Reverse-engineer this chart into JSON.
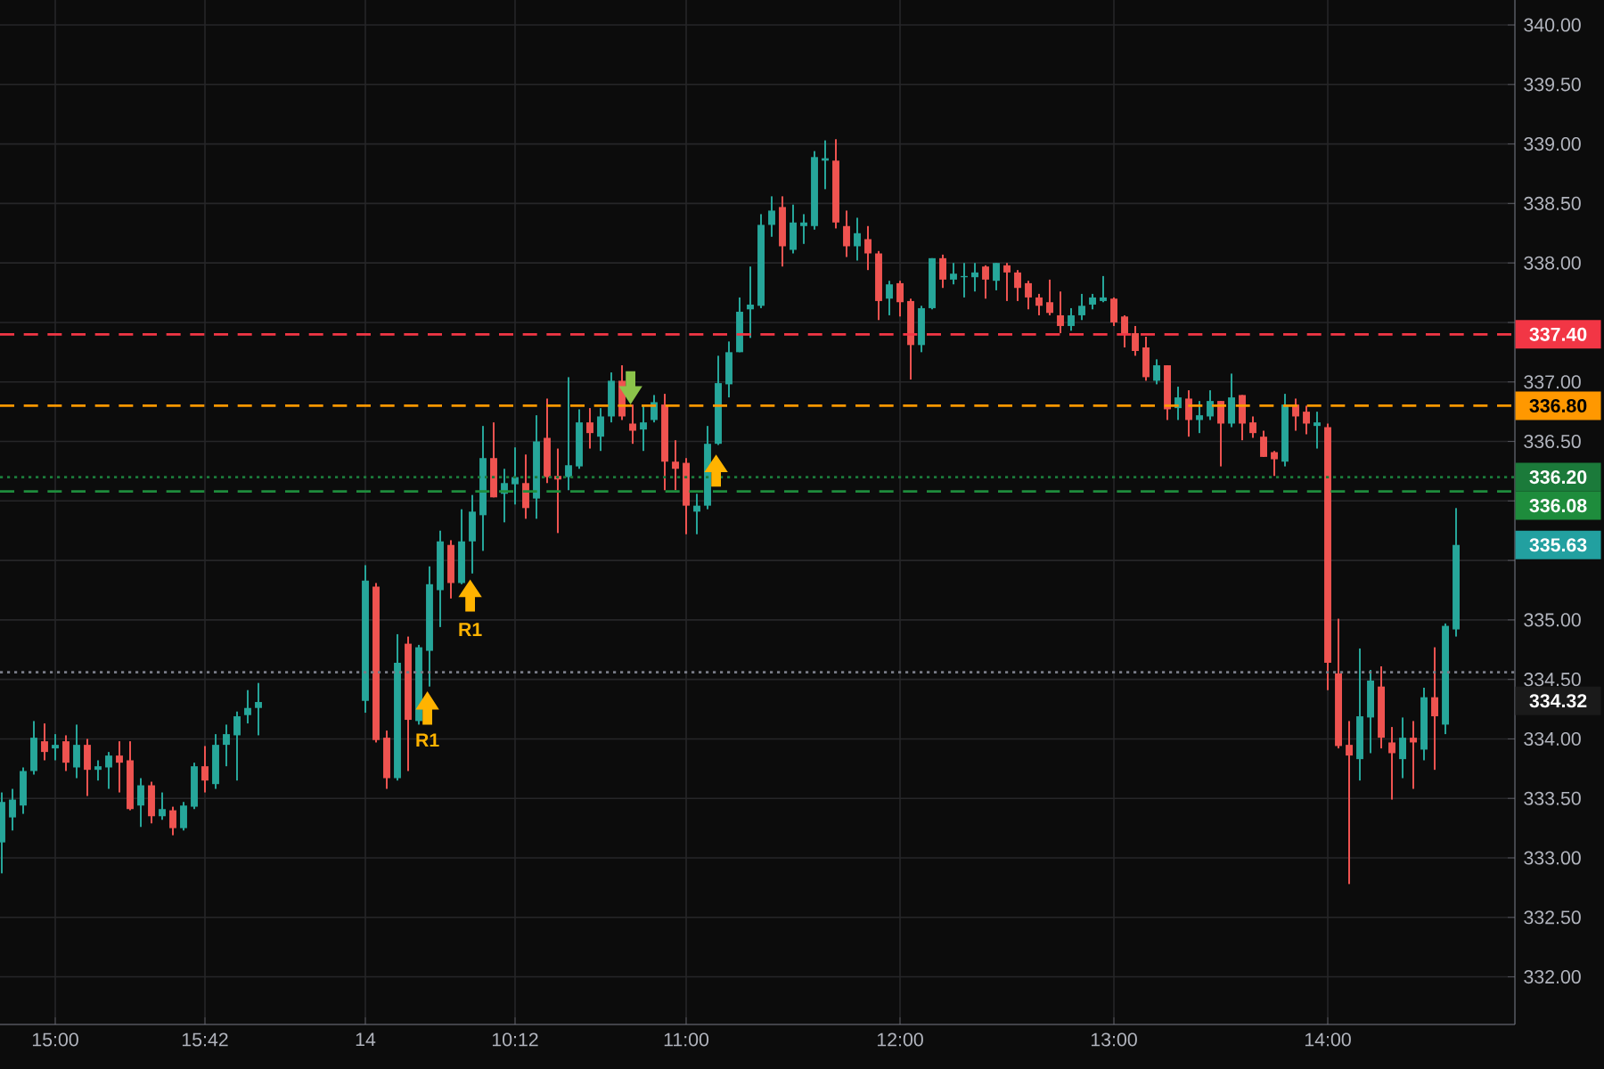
{
  "chart_data": {
    "type": "candlestick",
    "categories": [
      null,
      null,
      null,
      null,
      null,
      "15:00",
      null,
      null,
      null,
      null,
      null,
      null,
      null,
      null,
      null,
      null,
      null,
      null,
      null,
      "15:42",
      null,
      null,
      null,
      null,
      null,
      null,
      null,
      null,
      null,
      null,
      null,
      null,
      null,
      null,
      "14",
      null,
      null,
      null,
      null,
      null,
      null,
      null,
      null,
      null,
      null,
      null,
      null,
      null,
      "10:12",
      null,
      null,
      null,
      null,
      null,
      null,
      null,
      null,
      null,
      null,
      null,
      null,
      null,
      null,
      null,
      "11:00",
      null,
      null,
      null,
      null,
      null,
      null,
      null,
      null,
      null,
      null,
      null,
      null,
      null,
      null,
      null,
      null,
      null,
      null,
      null,
      "12:00",
      null,
      null,
      null,
      null,
      null,
      null,
      null,
      null,
      null,
      null,
      null,
      null,
      null,
      null,
      null,
      null,
      null,
      null,
      null,
      "13:00",
      null,
      null,
      null,
      null,
      null,
      null,
      null,
      null,
      null,
      null,
      null,
      null,
      null,
      null,
      null,
      null,
      null,
      null,
      null,
      "14:00",
      null,
      null,
      null,
      null,
      null,
      null,
      null,
      null,
      null,
      null,
      null,
      null
    ],
    "ohlc": [
      [
        333.13,
        333.55,
        332.87,
        333.47
      ],
      [
        333.34,
        333.58,
        333.23,
        333.49
      ],
      [
        333.44,
        333.76,
        333.37,
        333.73
      ],
      [
        333.73,
        334.15,
        333.7,
        334.01
      ],
      [
        333.98,
        334.13,
        333.82,
        333.89
      ],
      [
        333.92,
        334.04,
        333.82,
        333.95
      ],
      [
        333.98,
        334.03,
        333.73,
        333.8
      ],
      [
        333.76,
        334.12,
        333.67,
        333.95
      ],
      [
        333.95,
        334.0,
        333.52,
        333.74
      ],
      [
        333.74,
        333.82,
        333.65,
        333.77
      ],
      [
        333.76,
        333.89,
        333.58,
        333.86
      ],
      [
        333.86,
        333.98,
        333.55,
        333.8
      ],
      [
        333.82,
        333.98,
        333.4,
        333.41
      ],
      [
        333.44,
        333.67,
        333.26,
        333.61
      ],
      [
        333.61,
        333.64,
        333.29,
        333.35
      ],
      [
        333.35,
        333.55,
        333.32,
        333.41
      ],
      [
        333.4,
        333.43,
        333.19,
        333.25
      ],
      [
        333.25,
        333.47,
        333.23,
        333.44
      ],
      [
        333.43,
        333.8,
        333.41,
        333.77
      ],
      [
        333.77,
        333.94,
        333.55,
        333.65
      ],
      [
        333.62,
        334.04,
        333.58,
        333.95
      ],
      [
        333.95,
        334.12,
        333.77,
        334.04
      ],
      [
        334.03,
        334.23,
        333.65,
        334.19
      ],
      [
        334.2,
        334.41,
        334.13,
        334.26
      ],
      [
        334.26,
        334.47,
        334.03,
        334.31
      ],
      null,
      null,
      null,
      null,
      null,
      null,
      null,
      null,
      null,
      [
        334.32,
        335.46,
        334.22,
        335.33
      ],
      [
        335.28,
        335.31,
        333.97,
        333.99
      ],
      [
        334.01,
        334.07,
        333.58,
        333.67
      ],
      [
        333.67,
        334.88,
        333.65,
        334.64
      ],
      [
        334.8,
        334.86,
        333.73,
        334.16
      ],
      [
        334.15,
        334.79,
        334.12,
        334.77
      ],
      [
        334.74,
        335.45,
        334.44,
        335.3
      ],
      [
        335.25,
        335.75,
        334.94,
        335.66
      ],
      [
        335.63,
        335.67,
        335.18,
        335.31
      ],
      [
        335.31,
        335.93,
        335.3,
        335.66
      ],
      [
        335.66,
        336.05,
        335.39,
        335.91
      ],
      [
        335.88,
        336.63,
        335.58,
        336.36
      ],
      [
        336.36,
        336.66,
        336.03,
        336.03
      ],
      [
        336.06,
        336.27,
        335.82,
        336.15
      ],
      [
        336.14,
        336.45,
        335.97,
        336.2
      ],
      [
        336.15,
        336.39,
        335.85,
        335.94
      ],
      [
        336.02,
        336.72,
        335.85,
        336.5
      ],
      [
        336.53,
        336.86,
        336.15,
        336.2
      ],
      [
        336.21,
        336.44,
        335.73,
        336.18
      ],
      [
        336.2,
        337.04,
        336.09,
        336.3
      ],
      [
        336.29,
        336.77,
        336.27,
        336.66
      ],
      [
        336.66,
        336.78,
        336.44,
        336.57
      ],
      [
        336.54,
        336.78,
        336.42,
        336.71
      ],
      [
        336.71,
        337.08,
        336.66,
        337.01
      ],
      [
        337.01,
        337.14,
        336.68,
        336.71
      ],
      [
        336.65,
        336.81,
        336.48,
        336.59
      ],
      [
        336.6,
        336.81,
        336.42,
        336.66
      ],
      [
        336.68,
        336.89,
        336.66,
        336.83
      ],
      [
        336.81,
        336.9,
        336.09,
        336.33
      ],
      [
        336.33,
        336.51,
        336.09,
        336.27
      ],
      [
        336.32,
        336.36,
        335.72,
        335.96
      ],
      [
        335.91,
        336.06,
        335.72,
        335.96
      ],
      [
        335.96,
        336.63,
        335.93,
        336.48
      ],
      [
        336.48,
        337.22,
        336.47,
        336.99
      ],
      [
        336.98,
        337.34,
        336.87,
        337.25
      ],
      [
        337.25,
        337.71,
        337.25,
        337.59
      ],
      [
        337.61,
        337.97,
        337.37,
        337.65
      ],
      [
        337.64,
        338.41,
        337.62,
        338.32
      ],
      [
        338.32,
        338.56,
        338.22,
        338.44
      ],
      [
        338.47,
        338.56,
        337.97,
        338.14
      ],
      [
        338.11,
        338.49,
        338.08,
        338.34
      ],
      [
        338.31,
        338.41,
        338.16,
        338.34
      ],
      [
        338.31,
        338.94,
        338.28,
        338.89
      ],
      [
        338.86,
        339.03,
        338.62,
        338.88
      ],
      [
        338.86,
        339.04,
        338.29,
        338.34
      ],
      [
        338.31,
        338.44,
        338.05,
        338.14
      ],
      [
        338.14,
        338.38,
        338.02,
        338.25
      ],
      [
        338.2,
        338.31,
        337.94,
        338.08
      ],
      [
        338.08,
        338.1,
        337.52,
        337.68
      ],
      [
        337.7,
        337.85,
        337.56,
        337.82
      ],
      [
        337.83,
        337.85,
        337.55,
        337.67
      ],
      [
        337.68,
        337.7,
        337.02,
        337.31
      ],
      [
        337.31,
        337.64,
        337.25,
        337.62
      ],
      [
        337.62,
        338.04,
        337.61,
        338.04
      ],
      [
        338.04,
        338.07,
        337.79,
        337.86
      ],
      [
        337.86,
        338.0,
        337.82,
        337.91
      ],
      [
        337.88,
        338.0,
        337.71,
        337.89
      ],
      [
        337.88,
        338.0,
        337.76,
        337.92
      ],
      [
        337.97,
        337.98,
        337.7,
        337.86
      ],
      [
        337.85,
        338.0,
        337.77,
        338.0
      ],
      [
        337.98,
        338.0,
        337.68,
        337.92
      ],
      [
        337.92,
        337.94,
        337.68,
        337.79
      ],
      [
        337.83,
        337.85,
        337.61,
        337.71
      ],
      [
        337.71,
        337.74,
        337.56,
        337.64
      ],
      [
        337.67,
        337.86,
        337.56,
        337.58
      ],
      [
        337.56,
        337.76,
        337.41,
        337.47
      ],
      [
        337.47,
        337.62,
        337.43,
        337.56
      ],
      [
        337.56,
        337.74,
        337.52,
        337.64
      ],
      [
        337.65,
        337.74,
        337.61,
        337.71
      ],
      [
        337.68,
        337.89,
        337.67,
        337.71
      ],
      [
        337.7,
        337.71,
        337.47,
        337.5
      ],
      [
        337.55,
        337.56,
        337.29,
        337.4
      ],
      [
        337.41,
        337.47,
        337.22,
        337.26
      ],
      [
        337.29,
        337.38,
        337.01,
        337.04
      ],
      [
        337.01,
        337.19,
        336.98,
        337.14
      ],
      [
        337.14,
        337.14,
        336.68,
        336.77
      ],
      [
        336.78,
        336.96,
        336.68,
        336.87
      ],
      [
        336.86,
        336.93,
        336.54,
        336.68
      ],
      [
        336.68,
        336.84,
        336.57,
        336.72
      ],
      [
        336.71,
        336.93,
        336.68,
        336.84
      ],
      [
        336.84,
        336.84,
        336.29,
        336.65
      ],
      [
        336.65,
        337.07,
        336.62,
        336.87
      ],
      [
        336.89,
        336.89,
        336.51,
        336.65
      ],
      [
        336.66,
        336.71,
        336.53,
        336.57
      ],
      [
        336.54,
        336.59,
        336.37,
        336.37
      ],
      [
        336.41,
        336.42,
        336.21,
        336.35
      ],
      [
        336.33,
        336.9,
        336.29,
        336.81
      ],
      [
        336.81,
        336.86,
        336.59,
        336.71
      ],
      [
        336.75,
        336.8,
        336.56,
        336.65
      ],
      [
        336.63,
        336.75,
        336.44,
        336.66
      ],
      [
        336.62,
        336.65,
        334.41,
        334.64
      ],
      [
        334.55,
        335.01,
        333.92,
        333.94
      ],
      [
        333.95,
        334.15,
        332.78,
        333.86
      ],
      [
        333.83,
        334.76,
        333.65,
        334.19
      ],
      [
        334.18,
        334.58,
        333.88,
        334.49
      ],
      [
        334.44,
        334.61,
        333.92,
        334.01
      ],
      [
        333.97,
        334.1,
        333.49,
        333.88
      ],
      [
        333.83,
        334.18,
        333.67,
        334.01
      ],
      [
        334.01,
        334.15,
        333.58,
        333.97
      ],
      [
        333.91,
        334.43,
        333.82,
        334.35
      ],
      [
        334.35,
        334.77,
        333.74,
        334.19
      ],
      [
        334.12,
        334.97,
        334.04,
        334.95
      ],
      [
        334.92,
        335.94,
        334.86,
        335.63
      ]
    ],
    "ylim": [
      331.6,
      340.21
    ],
    "yticks": [
      {
        "value": 332,
        "label": "332.00"
      },
      {
        "value": 332.5,
        "label": "332.50"
      },
      {
        "value": 333,
        "label": "333.00"
      },
      {
        "value": 333.5,
        "label": "333.50"
      },
      {
        "value": 334,
        "label": "334.00"
      },
      {
        "value": 334.5,
        "label": "334.50"
      },
      {
        "value": 335,
        "label": "335.00"
      },
      {
        "value": 335.5,
        "label": null
      },
      {
        "value": 336,
        "label": null
      },
      {
        "value": 336.5,
        "label": "336.50"
      },
      {
        "value": 337,
        "label": "337.00"
      },
      {
        "value": 337.5,
        "label": null
      },
      {
        "value": 338,
        "label": "338.00"
      },
      {
        "value": 338.5,
        "label": "338.50"
      },
      {
        "value": 339,
        "label": "339.00"
      },
      {
        "value": 339.5,
        "label": "339.50"
      },
      {
        "value": 340,
        "label": "340.00"
      }
    ],
    "grid": true,
    "ref_lines": [
      {
        "axis": "y",
        "value": 337.4,
        "label": "337.40",
        "color": "#f23645",
        "line_style": "dashed"
      },
      {
        "axis": "y",
        "value": 336.8,
        "label": "336.80",
        "color": "#ff9800",
        "line_style": "dashed"
      },
      {
        "axis": "y",
        "value": 336.2,
        "label": "336.20",
        "color": "#1b7a3a",
        "line_style": "dotted"
      },
      {
        "axis": "y",
        "value": 336.08,
        "label": "336.08",
        "color": "#1e8c3c",
        "line_style": "dashed"
      },
      {
        "axis": "y",
        "value": 334.56,
        "color": "#787b86",
        "line_style": "dotted"
      }
    ],
    "annotations": [
      "R1",
      "R1",
      "335.63",
      "334.32"
    ]
  }
}
